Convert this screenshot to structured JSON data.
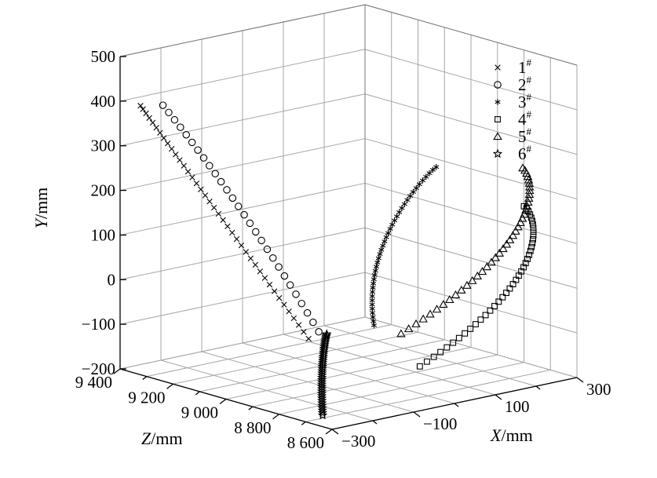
{
  "chart_data": {
    "type": "scatter3d",
    "title": "",
    "xlabel": "X/mm",
    "ylabel": "Y/mm",
    "zlabel": "Z/mm",
    "x_ticks": [
      "−300",
      "−100",
      "100",
      "300"
    ],
    "y_ticks": [
      "500",
      "400",
      "300",
      "200",
      "100",
      "0",
      "−100",
      "−200"
    ],
    "z_ticks": [
      "9 400",
      "9 200",
      "9 000",
      "8 800",
      "8 600"
    ],
    "legend": [
      {
        "name": "1",
        "sup": "#",
        "marker": "x"
      },
      {
        "name": "2",
        "sup": "#",
        "marker": "circle"
      },
      {
        "name": "3",
        "sup": "#",
        "marker": "asterisk"
      },
      {
        "name": "4",
        "sup": "#",
        "marker": "square"
      },
      {
        "name": "5",
        "sup": "#",
        "marker": "triangle"
      },
      {
        "name": "6",
        "sup": "#",
        "marker": "star"
      }
    ],
    "series": [
      {
        "name": "1#",
        "marker": "x",
        "count": 40,
        "start": [
          -250,
          380,
          9400
        ],
        "end": [
          -260,
          -30,
          8750
        ]
      },
      {
        "name": "2#",
        "marker": "circle",
        "count": 28,
        "start": [
          -260,
          400,
          9300
        ],
        "end": [
          -300,
          10,
          8650
        ]
      },
      {
        "name": "3#",
        "marker": "asterisk",
        "count": 40,
        "start": [
          150,
          250,
          8900
        ],
        "end": [
          30,
          -90,
          8950
        ]
      },
      {
        "name": "4#",
        "marker": "square",
        "count": 40,
        "start": [
          300,
          150,
          8800
        ],
        "end": [
          -20,
          -130,
          8700
        ]
      },
      {
        "name": "5#",
        "marker": "triangle",
        "count": 40,
        "start": [
          310,
          230,
          8820
        ],
        "end": [
          -40,
          -60,
          8740
        ]
      },
      {
        "name": "6#",
        "marker": "star",
        "count": 40,
        "start": [
          -300,
          10,
          8620
        ],
        "end": [
          -310,
          -170,
          8620
        ]
      }
    ]
  }
}
